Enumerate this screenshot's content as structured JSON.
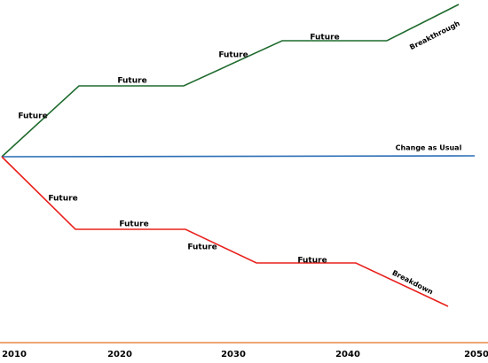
{
  "axis": {
    "ticks": [
      "2010",
      "2020",
      "2030",
      "2040",
      "2050"
    ]
  },
  "scenarios": [
    {
      "name": "Breakthrough",
      "labels": [
        "Future",
        "Future",
        "Future",
        "Future"
      ]
    },
    {
      "name": "Change as Usual"
    },
    {
      "name": "Breakdown",
      "labels": [
        "Future",
        "Future",
        "Future",
        "Future"
      ]
    }
  ]
}
